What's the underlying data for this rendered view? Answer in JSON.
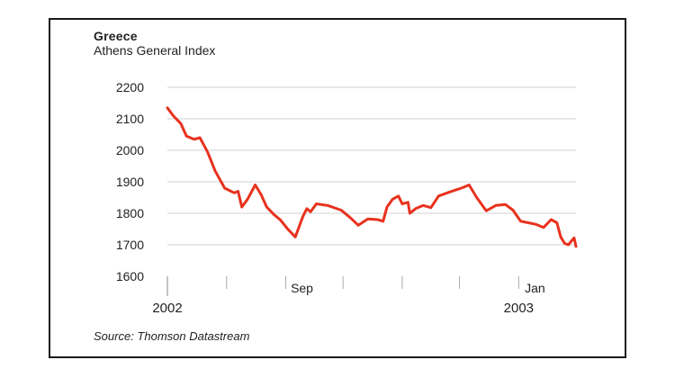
{
  "chart_data": {
    "type": "line",
    "title": "Greece",
    "subtitle": "Athens General Index",
    "source": "Source: Thomson Datastream",
    "ylim": [
      1600,
      2200
    ],
    "yticks": [
      1600,
      1700,
      1800,
      1900,
      2000,
      2100,
      2200
    ],
    "ytick_labels": [
      "1600",
      "1700",
      "1800",
      "1900",
      "2000",
      "2100",
      "2200"
    ],
    "xlim": [
      "2002-07-01",
      "2003-01-31"
    ],
    "xtick_labels": [
      {
        "text": "Sep",
        "date": "2002-09-01"
      },
      {
        "text": "Jan",
        "date": "2003-01-01"
      }
    ],
    "year_labels": [
      {
        "text": "2002",
        "date": "2002-07-01"
      },
      {
        "text": "2003",
        "date": "2003-01-01"
      }
    ],
    "grid": true,
    "line_color": "#e8321e",
    "series": [
      {
        "points": [
          [
            "2002-07-01",
            2135
          ],
          [
            "2002-07-04",
            2110
          ],
          [
            "2002-07-08",
            2085
          ],
          [
            "2002-07-11",
            2045
          ],
          [
            "2002-07-15",
            2035
          ],
          [
            "2002-07-18",
            2040
          ],
          [
            "2002-07-22",
            1995
          ],
          [
            "2002-07-26",
            1935
          ],
          [
            "2002-07-31",
            1880
          ],
          [
            "2002-08-05",
            1865
          ],
          [
            "2002-08-07",
            1870
          ],
          [
            "2002-08-09",
            1820
          ],
          [
            "2002-08-12",
            1845
          ],
          [
            "2002-08-16",
            1890
          ],
          [
            "2002-08-19",
            1860
          ],
          [
            "2002-08-22",
            1820
          ],
          [
            "2002-08-26",
            1795
          ],
          [
            "2002-08-29",
            1780
          ],
          [
            "2002-09-02",
            1750
          ],
          [
            "2002-09-06",
            1725
          ],
          [
            "2002-09-10",
            1790
          ],
          [
            "2002-09-12",
            1815
          ],
          [
            "2002-09-14",
            1805
          ],
          [
            "2002-09-17",
            1830
          ],
          [
            "2002-09-23",
            1825
          ],
          [
            "2002-09-30",
            1810
          ],
          [
            "2002-10-05",
            1785
          ],
          [
            "2002-10-09",
            1762
          ],
          [
            "2002-10-14",
            1782
          ],
          [
            "2002-10-19",
            1780
          ],
          [
            "2002-10-22",
            1775
          ],
          [
            "2002-10-24",
            1820
          ],
          [
            "2002-10-27",
            1845
          ],
          [
            "2002-10-30",
            1855
          ],
          [
            "2002-11-01",
            1830
          ],
          [
            "2002-11-04",
            1835
          ],
          [
            "2002-11-05",
            1800
          ],
          [
            "2002-11-08",
            1815
          ],
          [
            "2002-11-12",
            1825
          ],
          [
            "2002-11-16",
            1818
          ],
          [
            "2002-11-20",
            1855
          ],
          [
            "2002-11-26",
            1868
          ],
          [
            "2002-12-02",
            1880
          ],
          [
            "2002-12-06",
            1890
          ],
          [
            "2002-12-10",
            1850
          ],
          [
            "2002-12-15",
            1808
          ],
          [
            "2002-12-20",
            1825
          ],
          [
            "2002-12-25",
            1828
          ],
          [
            "2002-12-29",
            1810
          ],
          [
            "2003-01-02",
            1775
          ],
          [
            "2003-01-06",
            1770
          ],
          [
            "2003-01-10",
            1765
          ],
          [
            "2003-01-14",
            1755
          ],
          [
            "2003-01-18",
            1780
          ],
          [
            "2003-01-21",
            1770
          ],
          [
            "2003-01-23",
            1725
          ],
          [
            "2003-01-25",
            1705
          ],
          [
            "2003-01-27",
            1700
          ],
          [
            "2003-01-29",
            1715
          ],
          [
            "2003-01-30",
            1722
          ],
          [
            "2003-01-31",
            1695
          ]
        ]
      }
    ]
  }
}
